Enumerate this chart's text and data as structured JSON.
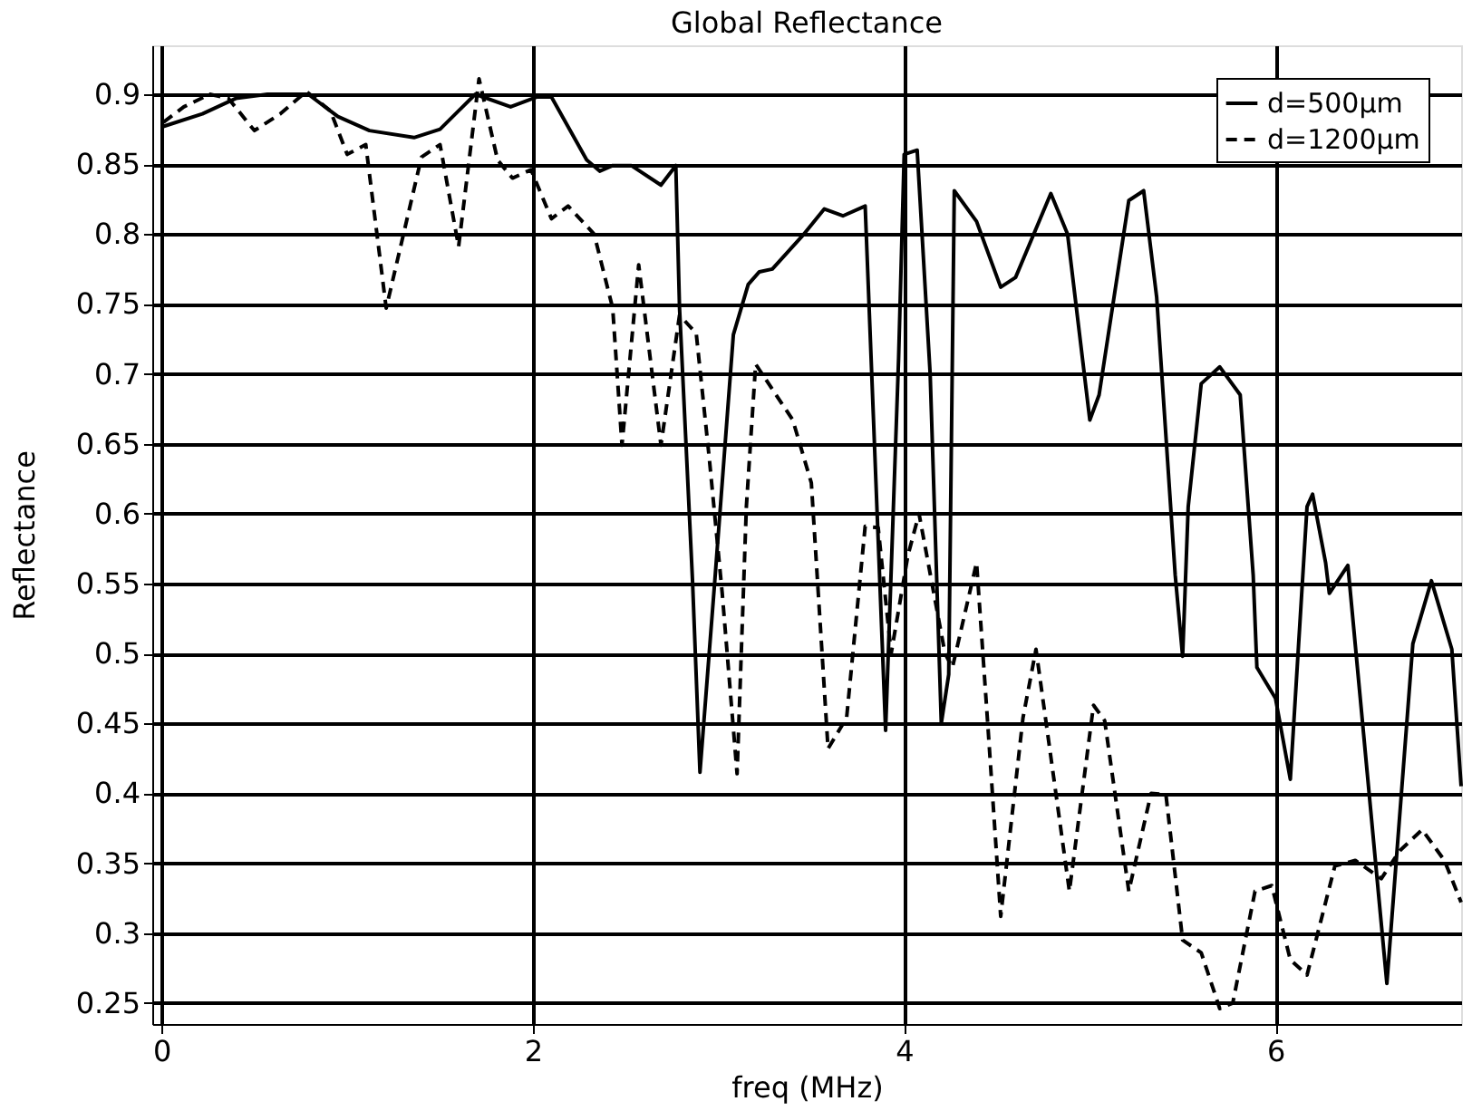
{
  "chart_data": {
    "type": "line",
    "title": "Global Reflectance",
    "xlabel": "freq (MHz)",
    "ylabel": "Reflectance",
    "xlim": [
      -0.05,
      7
    ],
    "xticks": [
      0,
      2,
      4,
      6
    ],
    "ylim": [
      0.235,
      0.935
    ],
    "yticks": [
      0.25,
      0.3,
      0.35,
      0.4,
      0.45,
      0.5,
      0.55,
      0.6,
      0.65,
      0.7,
      0.75,
      0.8,
      0.85,
      0.9
    ],
    "grid": true,
    "legend": "top right",
    "series": [
      {
        "name": "d=500µm",
        "color": "#000000",
        "line_style": "solid",
        "x": [
          0.01,
          0.22,
          0.4,
          0.57,
          0.79,
          0.95,
          1.12,
          1.36,
          1.5,
          1.69,
          1.88,
          2.02,
          2.1,
          2.29,
          2.36,
          2.43,
          2.53,
          2.69,
          2.77,
          2.79,
          2.86,
          2.9,
          2.98,
          3.08,
          3.16,
          3.22,
          3.29,
          3.46,
          3.57,
          3.67,
          3.79,
          3.9,
          3.97,
          4.0,
          4.07,
          4.14,
          4.2,
          4.24,
          4.27,
          4.39,
          4.52,
          4.6,
          4.79,
          4.88,
          5.0,
          5.05,
          5.21,
          5.29,
          5.36,
          5.46,
          5.5,
          5.53,
          5.6,
          5.7,
          5.81,
          5.88,
          5.9,
          6.0,
          6.08,
          6.17,
          6.2,
          6.27,
          6.29,
          6.39,
          6.6,
          6.74,
          6.84,
          6.95,
          7.0
        ],
        "values": [
          0.877,
          0.886,
          0.897,
          0.9,
          0.9,
          0.884,
          0.874,
          0.869,
          0.875,
          0.9,
          0.891,
          0.898,
          0.898,
          0.853,
          0.845,
          0.849,
          0.849,
          0.835,
          0.849,
          0.747,
          0.552,
          0.415,
          0.552,
          0.728,
          0.764,
          0.773,
          0.775,
          0.8,
          0.818,
          0.813,
          0.82,
          0.445,
          0.711,
          0.857,
          0.86,
          0.7,
          0.45,
          0.485,
          0.831,
          0.809,
          0.762,
          0.769,
          0.829,
          0.8,
          0.667,
          0.685,
          0.824,
          0.831,
          0.755,
          0.556,
          0.498,
          0.605,
          0.693,
          0.705,
          0.685,
          0.556,
          0.49,
          0.468,
          0.41,
          0.605,
          0.614,
          0.565,
          0.543,
          0.563,
          0.264,
          0.507,
          0.552,
          0.503,
          0.405
        ]
      },
      {
        "name": "d=1200µm",
        "color": "#000000",
        "line_style": "dashed",
        "x": [
          0.01,
          0.12,
          0.26,
          0.36,
          0.5,
          0.64,
          0.78,
          0.91,
          1.0,
          1.1,
          1.21,
          1.4,
          1.5,
          1.6,
          1.71,
          1.81,
          1.89,
          1.99,
          2.1,
          2.19,
          2.33,
          2.43,
          2.48,
          2.57,
          2.69,
          2.79,
          2.88,
          2.95,
          3.02,
          3.1,
          3.15,
          3.2,
          3.4,
          3.5,
          3.59,
          3.69,
          3.79,
          3.86,
          3.93,
          4.02,
          4.08,
          4.15,
          4.22,
          4.26,
          4.39,
          4.45,
          4.52,
          4.64,
          4.71,
          4.89,
          5.02,
          5.08,
          5.21,
          5.33,
          5.41,
          5.5,
          5.6,
          5.7,
          5.77,
          5.89,
          5.98,
          6.08,
          6.17,
          6.32,
          6.43,
          6.57,
          6.67,
          6.79,
          6.91,
          7.0
        ],
        "values": [
          0.88,
          0.891,
          0.9,
          0.897,
          0.874,
          0.886,
          0.902,
          0.888,
          0.857,
          0.864,
          0.747,
          0.855,
          0.864,
          0.791,
          0.911,
          0.853,
          0.84,
          0.846,
          0.811,
          0.82,
          0.8,
          0.747,
          0.649,
          0.778,
          0.649,
          0.742,
          0.729,
          0.64,
          0.543,
          0.414,
          0.605,
          0.707,
          0.667,
          0.622,
          0.432,
          0.454,
          0.591,
          0.59,
          0.5,
          0.57,
          0.6,
          0.55,
          0.5,
          0.49,
          0.565,
          0.45,
          0.312,
          0.454,
          0.503,
          0.33,
          0.463,
          0.452,
          0.33,
          0.4,
          0.399,
          0.295,
          0.286,
          0.246,
          0.25,
          0.33,
          0.334,
          0.281,
          0.27,
          0.348,
          0.352,
          0.339,
          0.359,
          0.374,
          0.352,
          0.322
        ]
      }
    ]
  }
}
